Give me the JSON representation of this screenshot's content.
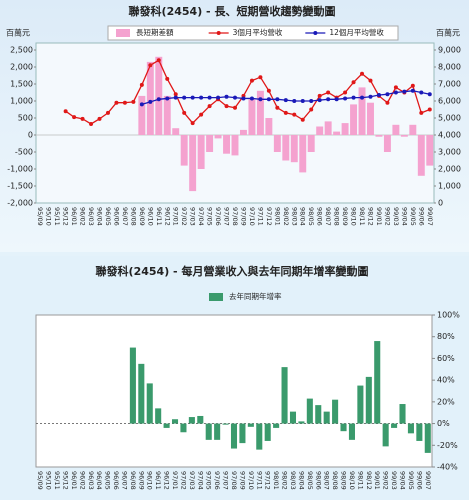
{
  "chart_data": [
    {
      "type": "combo",
      "title": "聯發科(2454) - 長、短期營收趨勢變動圖",
      "ylabel": "百萬元",
      "y2label": "百萬元",
      "legend": "top",
      "categories": [
        "95/09",
        "95/10",
        "95/11",
        "95/12",
        "96/01",
        "96/02",
        "96/03",
        "96/04",
        "96/05",
        "96/06",
        "96/07",
        "96/08",
        "96/09",
        "96/10",
        "96/11",
        "96/12",
        "97/01",
        "97/02",
        "97/03",
        "97/04",
        "97/05",
        "97/06",
        "97/07",
        "97/08",
        "97/09",
        "97/10",
        "97/11",
        "97/12",
        "98/01",
        "98/02",
        "98/03",
        "98/04",
        "98/05",
        "98/06",
        "98/07",
        "98/08",
        "98/09",
        "98/10",
        "98/11",
        "98/12",
        "99/01",
        "99/02",
        "99/03",
        "99/04",
        "99/05",
        "99/06",
        "99/07"
      ],
      "series": [
        {
          "name": "長短期差額",
          "type": "bar",
          "color": "#f4a2cf",
          "values": [
            null,
            null,
            null,
            null,
            null,
            null,
            null,
            null,
            null,
            null,
            null,
            null,
            1150,
            2150,
            2300,
            1150,
            200,
            -900,
            -1650,
            -1000,
            -500,
            -100,
            -550,
            -600,
            150,
            1050,
            1300,
            500,
            -500,
            -750,
            -800,
            -1100,
            -500,
            250,
            400,
            100,
            350,
            900,
            1400,
            950,
            -50,
            -500,
            300,
            -50,
            300,
            -1200,
            -900
          ]
        },
        {
          "name": "3個月平均營收",
          "type": "line",
          "axis": "y2",
          "color": "#e01818",
          "values": [
            null,
            null,
            null,
            5400,
            5050,
            4950,
            4650,
            4950,
            5300,
            5900,
            5900,
            5950,
            6950,
            8100,
            8400,
            7300,
            6400,
            5300,
            4700,
            5200,
            5700,
            6100,
            5700,
            5600,
            6300,
            7200,
            7400,
            6600,
            5600,
            5300,
            5200,
            4900,
            5500,
            6300,
            6500,
            6200,
            6500,
            7100,
            7600,
            7200,
            6300,
            5900,
            6800,
            6500,
            6900,
            5300,
            5500
          ]
        },
        {
          "name": "12個月平均營收",
          "type": "line",
          "axis": "y2",
          "color": "#1a1ab8",
          "values": [
            null,
            null,
            null,
            null,
            null,
            null,
            null,
            null,
            null,
            null,
            null,
            null,
            5800,
            5950,
            6100,
            6150,
            6200,
            6200,
            6200,
            6200,
            6200,
            6200,
            6250,
            6200,
            6150,
            6150,
            6100,
            6100,
            6100,
            6050,
            6000,
            6000,
            6000,
            6050,
            6100,
            6100,
            6150,
            6200,
            6200,
            6250,
            6350,
            6400,
            6500,
            6550,
            6600,
            6500,
            6400
          ]
        }
      ],
      "ylim": [
        -2000,
        2500
      ],
      "yticks": [
        {
          "value": 2500,
          "label": "2,500"
        },
        {
          "value": 2000,
          "label": "2,000"
        },
        {
          "value": 1500,
          "label": "1,500"
        },
        {
          "value": 1000,
          "label": "1,000"
        },
        500,
        0,
        -500,
        {
          "value": -1000,
          "label": "-1,000"
        },
        {
          "value": -1500,
          "label": "-1,500"
        },
        {
          "value": -2000,
          "label": "-2,000"
        }
      ],
      "y2lim": [
        0,
        9000
      ],
      "y2ticks": [
        {
          "value": 9000,
          "label": "9,000"
        },
        {
          "value": 8000,
          "label": "8,000"
        },
        {
          "value": 7000,
          "label": "7,000"
        },
        {
          "value": 6000,
          "label": "6,000"
        },
        {
          "value": 5000,
          "label": "5,000"
        },
        {
          "value": 4000,
          "label": "4,000"
        },
        {
          "value": 3000,
          "label": "3,000"
        },
        {
          "value": 2000,
          "label": "2,000"
        },
        {
          "value": 1000,
          "label": "1,000"
        },
        0
      ],
      "grid": false
    },
    {
      "type": "bar",
      "title": "聯發科(2454) - 每月營業收入與去年同期年增率變動圖",
      "legend": "top",
      "y_axis_position": "right",
      "categories": [
        "95/09",
        "95/10",
        "95/11",
        "95/12",
        "96/01",
        "96/02",
        "96/03",
        "96/04",
        "96/05",
        "96/06",
        "96/07",
        "96/08",
        "96/09",
        "96/10",
        "96/11",
        "96/12",
        "97/01",
        "97/02",
        "97/03",
        "97/04",
        "97/05",
        "97/06",
        "97/07",
        "97/08",
        "97/09",
        "97/10",
        "97/11",
        "97/12",
        "98/01",
        "98/02",
        "98/03",
        "98/04",
        "98/05",
        "98/06",
        "98/07",
        "98/08",
        "98/09",
        "98/10",
        "98/11",
        "98/12",
        "99/01",
        "99/02",
        "99/03",
        "99/04",
        "99/05",
        "99/06",
        "99/07"
      ],
      "series": [
        {
          "name": "去年同期年增率",
          "color": "#3a9a6c",
          "values": [
            null,
            null,
            null,
            null,
            null,
            null,
            null,
            null,
            null,
            null,
            null,
            70,
            55,
            37,
            14,
            -4,
            4,
            -8,
            6,
            7,
            -15,
            -15,
            -1,
            -23,
            -18,
            -3,
            -24,
            -16,
            -4,
            52,
            11,
            2,
            23,
            17,
            11,
            22,
            -7,
            -15,
            35,
            43,
            76,
            -21,
            -4,
            18,
            -9,
            -16,
            -27
          ]
        }
      ],
      "ylim": [
        -40,
        100
      ],
      "yticks": [
        {
          "value": 100,
          "label": "100%"
        },
        {
          "value": 80,
          "label": "80%"
        },
        {
          "value": 60,
          "label": "60%"
        },
        {
          "value": 40,
          "label": "40%"
        },
        {
          "value": 20,
          "label": "20%"
        },
        {
          "value": 0,
          "label": "0%"
        },
        {
          "value": -20,
          "label": "-20%"
        },
        {
          "value": -40,
          "label": "-40%"
        }
      ],
      "grid": false
    }
  ]
}
